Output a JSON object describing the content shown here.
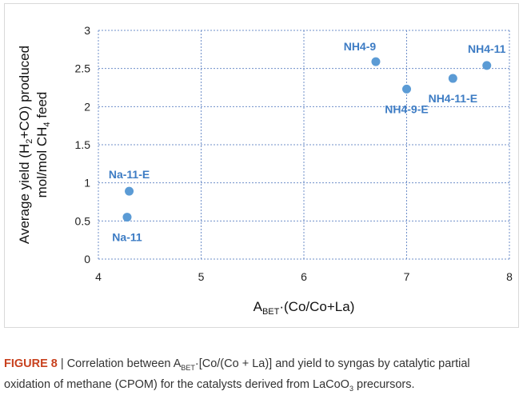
{
  "chart_data": {
    "type": "scatter",
    "xlim": [
      4,
      8
    ],
    "ylim": [
      0,
      3
    ],
    "x_ticks": [
      "4",
      "5",
      "6",
      "7",
      "8"
    ],
    "y_ticks": [
      "0",
      "0.5",
      "1",
      "1.5",
      "2",
      "2.5",
      "3"
    ],
    "grid": true,
    "marker_color": "#5b9bd5",
    "label_color": "#3d7cc4",
    "points": [
      {
        "label": "Na-11-E",
        "x": 4.3,
        "y": 0.89,
        "label_pos": "above"
      },
      {
        "label": "Na-11",
        "x": 4.28,
        "y": 0.55,
        "label_pos": "below"
      },
      {
        "label": "NH4-9",
        "x": 6.7,
        "y": 2.59,
        "label_pos": "left-above"
      },
      {
        "label": "NH4-9-E",
        "x": 7.0,
        "y": 2.23,
        "label_pos": "below"
      },
      {
        "label": "NH4-11-E",
        "x": 7.45,
        "y": 2.37,
        "label_pos": "below"
      },
      {
        "label": "NH4-11",
        "x": 7.78,
        "y": 2.54,
        "label_pos": "above"
      }
    ],
    "xlabel": {
      "main": "A",
      "sub": "BET",
      "rest": "·(Co/Co+La)"
    },
    "ylabel": {
      "line1": {
        "a": "Average yield (H",
        "sub": "2",
        "b": "+CO) produced"
      },
      "line2": {
        "a": "mol/mol CH",
        "sub": "4",
        "b": " feed"
      }
    }
  },
  "caption": {
    "figure_label": "FIGURE 8",
    "sep": " | Correlation between A",
    "sub1": "BET",
    "t1": "·[Co/(Co + La)] and yield to syngas by catalytic partial oxidation of methane (CPOM) for the catalysts derived from LaCoO",
    "sub2": "3",
    "t2": " precursors."
  }
}
